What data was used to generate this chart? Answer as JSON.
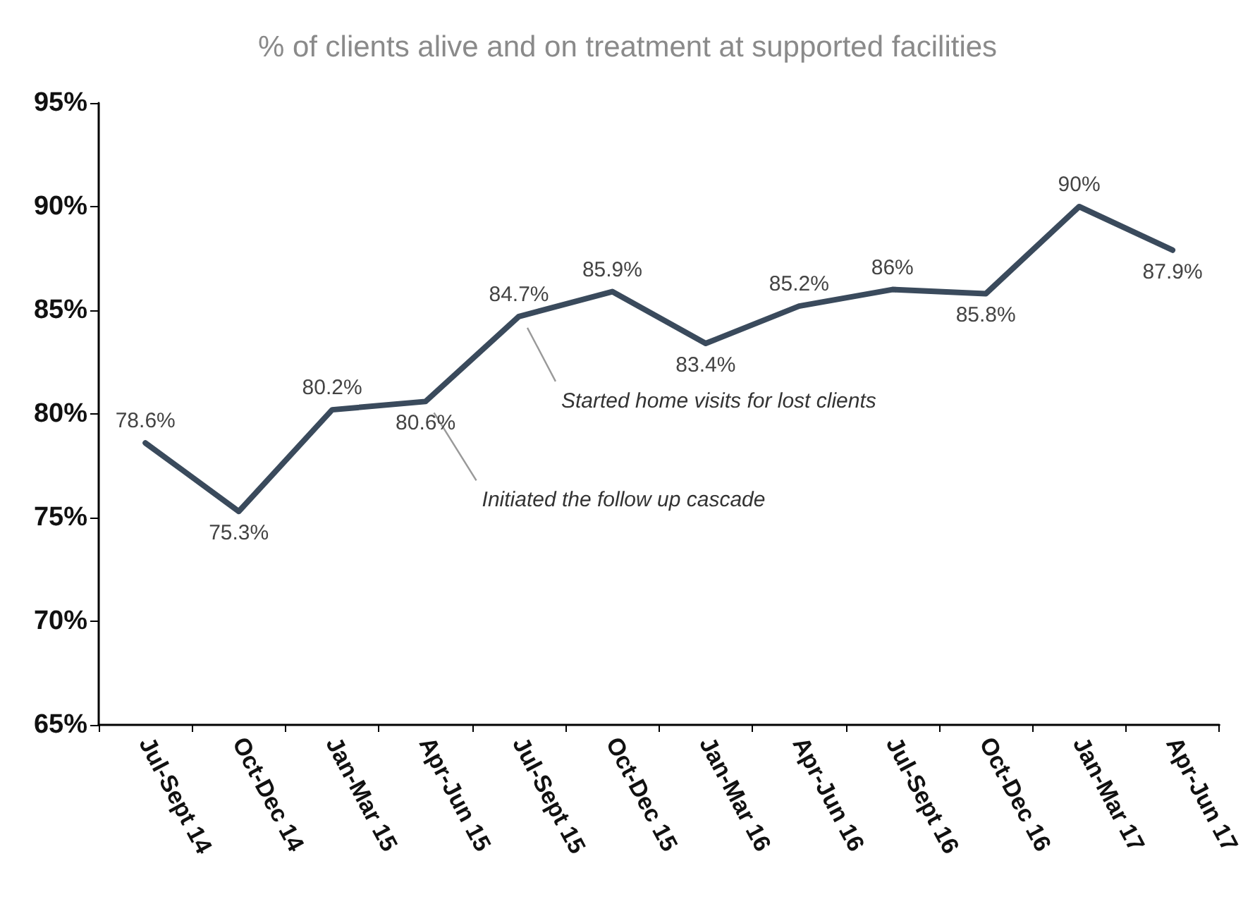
{
  "chart_data": {
    "type": "line",
    "title": "% of clients alive and on treatment at supported facilities",
    "categories": [
      "Jul-Sept 14",
      "Oct-Dec 14",
      "Jan-Mar 15",
      "Apr-Jun 15",
      "Jul-Sept 15",
      "Oct-Dec 15",
      "Jan-Mar 16",
      "Apr-Jun 16",
      "Jul-Sept 16",
      "Oct-Dec 16",
      "Jan-Mar 17",
      "Apr-Jun 17"
    ],
    "series": [
      {
        "color": "#3a4a5c",
        "values": [
          78.6,
          75.3,
          80.2,
          80.6,
          84.7,
          85.9,
          83.4,
          85.2,
          86,
          85.8,
          90,
          87.9
        ],
        "value_labels": [
          "78.6%",
          "75.3%",
          "80.2%",
          "80.6%",
          "84.7%",
          "85.9%",
          "83.4%",
          "85.2%",
          "86%",
          "85.8%",
          "90%",
          "87.9%"
        ]
      }
    ],
    "ylim": [
      65,
      95
    ],
    "yticks": [
      {
        "value": 65,
        "label": "65%"
      },
      {
        "value": 70,
        "label": "70%"
      },
      {
        "value": 75,
        "label": "75%"
      },
      {
        "value": 80,
        "label": "80%"
      },
      {
        "value": 85,
        "label": "85%"
      },
      {
        "value": 90,
        "label": "90%"
      },
      {
        "value": 95,
        "label": "95%"
      }
    ],
    "annotations": [
      "Started home visits for lost clients",
      "Initiated the follow up cascade"
    ],
    "grid": false,
    "marker": "none",
    "line_style": "solid"
  }
}
